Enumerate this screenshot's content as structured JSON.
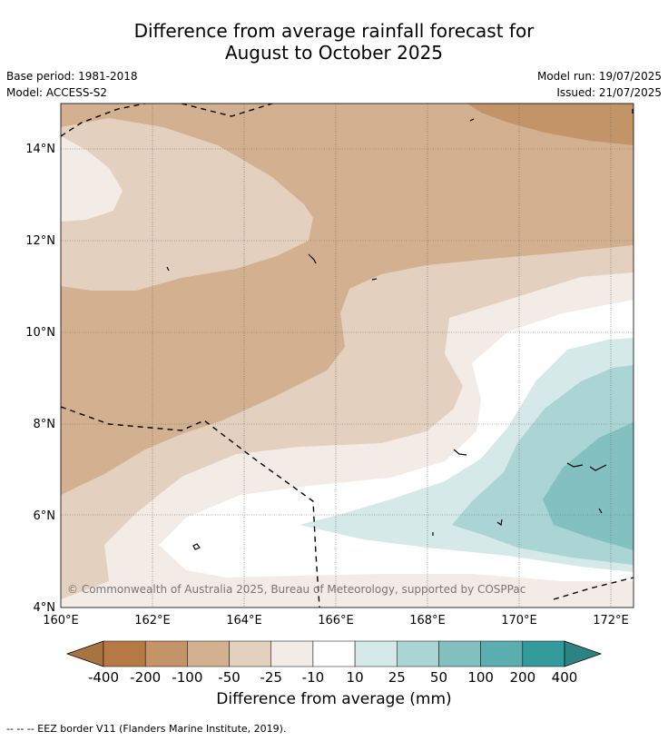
{
  "title_line1": "Difference from average rainfall forecast for",
  "title_line2": "August to October 2025",
  "base_period": "Base period: 1981-2018",
  "model": "Model: ACCESS-S2",
  "model_run": "Model run: 19/07/2025",
  "issued": "Issued: 21/07/2025",
  "copyright": "© Commonwealth of Australia 2025, Bureau of Meteorology, supported by COSPPac",
  "lat_labels": [
    "14°N",
    "12°N",
    "10°N",
    "8°N",
    "6°N",
    "4°N"
  ],
  "lon_labels": [
    "160°E",
    "162°E",
    "164°E",
    "166°E",
    "168°E",
    "170°E",
    "172°E"
  ],
  "colorbar": {
    "title": "Difference from average (mm)",
    "ticks": [
      "-400",
      "-200",
      "-100",
      "-50",
      "-25",
      "-10",
      "10",
      "25",
      "50",
      "100",
      "200",
      "400"
    ],
    "colors": [
      "#a97340",
      "#b57a43",
      "#c39467",
      "#d3b08f",
      "#e4d0be",
      "#f3ebe5",
      "#ffffff",
      "#d5e9e9",
      "#abd5d5",
      "#83c1c1",
      "#5aaeae",
      "#349a9a",
      "#2b8383"
    ]
  },
  "footer": "--  --  -- EEZ border V11 (Flanders Marine Institute, 2019)."
}
